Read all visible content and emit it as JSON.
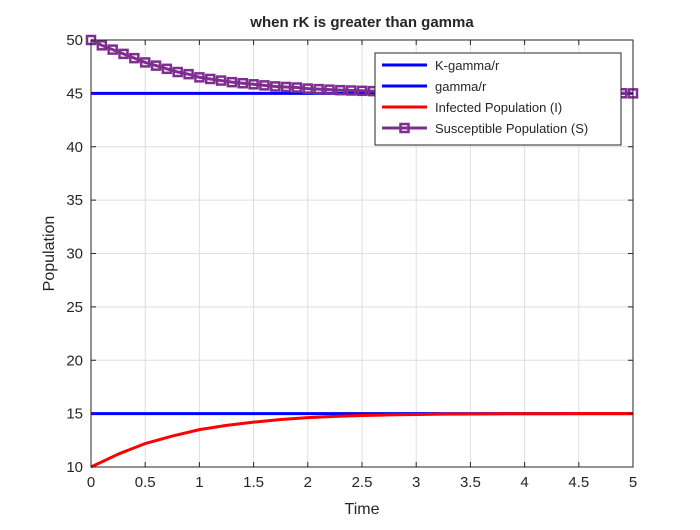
{
  "chart_data": {
    "type": "line",
    "title": "when rK is greater than gamma",
    "xlabel": "Time",
    "ylabel": "Population",
    "xlim": [
      0,
      5
    ],
    "ylim": [
      10,
      50
    ],
    "xticks": [
      0,
      0.5,
      1,
      1.5,
      2,
      2.5,
      3,
      3.5,
      4,
      4.5,
      5
    ],
    "xtick_labels": [
      "0",
      "0.5",
      "1",
      "1.5",
      "2",
      "2.5",
      "3",
      "3.5",
      "4",
      "4.5",
      "5"
    ],
    "yticks": [
      10,
      15,
      20,
      25,
      30,
      35,
      40,
      45,
      50
    ],
    "ytick_labels": [
      "10",
      "15",
      "20",
      "25",
      "30",
      "35",
      "40",
      "45",
      "50"
    ],
    "grid": true,
    "legend_position": "top-right",
    "series": [
      {
        "name": "K-gamma/r",
        "color": "#0000ff",
        "marker": "none",
        "x": [
          0,
          5
        ],
        "y": [
          45,
          45
        ]
      },
      {
        "name": "gamma/r",
        "color": "#0000ff",
        "marker": "none",
        "x": [
          0,
          5
        ],
        "y": [
          15,
          15
        ]
      },
      {
        "name": "Infected Population (I)",
        "color": "#ff0000",
        "marker": "none",
        "x": [
          0,
          0.25,
          0.5,
          0.75,
          1,
          1.25,
          1.5,
          1.75,
          2,
          2.25,
          2.5,
          2.75,
          3,
          3.25,
          3.5,
          3.75,
          4,
          4.25,
          4.5,
          4.75,
          5
        ],
        "y": [
          10,
          11.2,
          12.2,
          12.9,
          13.5,
          13.9,
          14.2,
          14.45,
          14.62,
          14.74,
          14.82,
          14.88,
          14.92,
          14.95,
          14.97,
          14.98,
          14.99,
          14.99,
          15,
          15,
          15
        ]
      },
      {
        "name": "Susceptible Population  (S)",
        "color": "#7e2f8e",
        "marker": "square",
        "x": [
          0,
          0.1,
          0.2,
          0.3,
          0.4,
          0.5,
          0.6,
          0.7,
          0.8,
          0.9,
          1,
          1.1,
          1.2,
          1.3,
          1.4,
          1.5,
          1.6,
          1.7,
          1.8,
          1.9,
          2,
          2.1,
          2.2,
          2.3,
          2.4,
          2.5,
          2.6,
          2.7,
          2.8,
          2.9,
          3,
          3.1,
          3.2,
          3.3,
          3.4,
          3.5,
          3.6,
          3.7,
          3.8,
          3.9,
          4,
          4.1,
          4.2,
          4.3,
          4.4,
          4.5,
          4.6,
          4.7,
          4.8,
          4.9,
          5
        ],
        "y": [
          50,
          49.5,
          49.1,
          48.7,
          48.3,
          47.9,
          47.6,
          47.3,
          47.0,
          46.8,
          46.5,
          46.35,
          46.2,
          46.05,
          45.95,
          45.85,
          45.75,
          45.65,
          45.6,
          45.55,
          45.45,
          45.4,
          45.35,
          45.3,
          45.27,
          45.24,
          45.21,
          45.19,
          45.17,
          45.15,
          45.13,
          45.12,
          45.1,
          45.09,
          45.08,
          45.07,
          45.06,
          45.05,
          45.05,
          45.04,
          45.04,
          45.03,
          45.03,
          45.02,
          45.02,
          45.02,
          45.01,
          45.01,
          45.01,
          45.01,
          45
        ]
      }
    ]
  }
}
